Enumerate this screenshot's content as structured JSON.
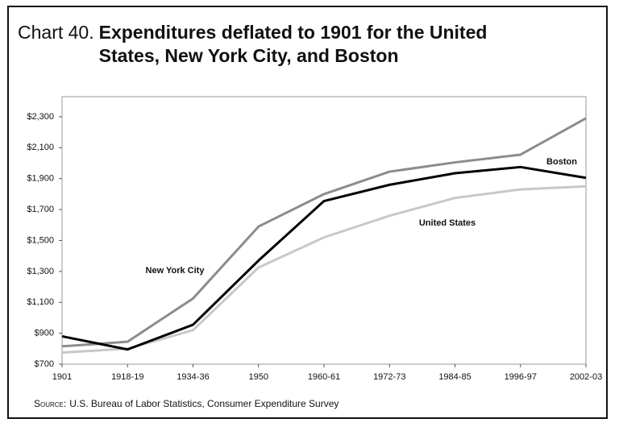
{
  "chart_data": {
    "type": "line",
    "chart_label": "Chart 40.",
    "title": "Expenditures deflated to 1901 for the United States, New York City, and Boston",
    "source_label": "Source:",
    "source": "U.S. Bureau of Labor Statistics, Consumer Expenditure Survey",
    "categories": [
      "1901",
      "1918-19",
      "1934-36",
      "1950",
      "1960-61",
      "1972-73",
      "1984-85",
      "1996-97",
      "2002-03"
    ],
    "series": [
      {
        "name": "Boston",
        "color": "#8c8c8c",
        "values": [
          815,
          845,
          1125,
          1590,
          1800,
          1945,
          2005,
          2055,
          2290
        ]
      },
      {
        "name": "United States",
        "color": "#c8c8c8",
        "values": [
          775,
          800,
          920,
          1325,
          1520,
          1660,
          1775,
          1830,
          1850
        ]
      },
      {
        "name": "New York City",
        "color": "#000000",
        "values": [
          880,
          795,
          955,
          1370,
          1755,
          1860,
          1935,
          1975,
          1905
        ]
      }
    ],
    "ylim": [
      700,
      2430
    ],
    "yticks": [
      {
        "value": 700,
        "label": "$700"
      },
      {
        "value": 900,
        "label": "$900"
      },
      {
        "value": 1100,
        "label": "$1,100"
      },
      {
        "value": 1300,
        "label": "$1,300"
      },
      {
        "value": 1500,
        "label": "$1,500"
      },
      {
        "value": 1700,
        "label": "$1,700"
      },
      {
        "value": 1900,
        "label": "$1,900"
      },
      {
        "value": 2100,
        "label": "$2,100"
      },
      {
        "value": 2300,
        "label": "$2,300"
      }
    ],
    "grid": false
  }
}
